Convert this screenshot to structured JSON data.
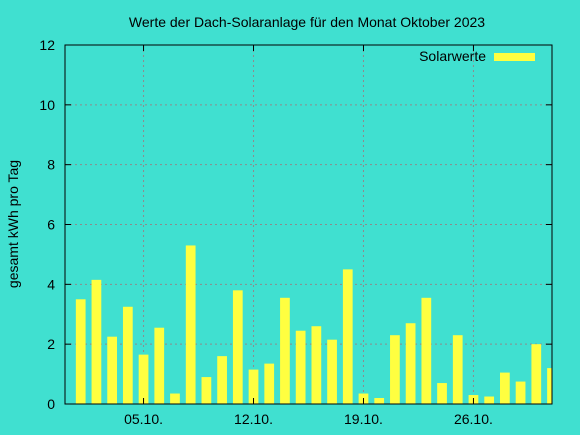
{
  "chart_data": {
    "type": "bar",
    "title": "Werte der Dach-Solaranlage für den Monat Oktober 2023",
    "xlabel": "",
    "ylabel": "gesamt kWh pro Tag",
    "background": "#40e0d0",
    "bar_color": "#ffff40",
    "bar_edge_color": "#cccc00",
    "grid": true,
    "legend_position": "top-right",
    "ylim": [
      0,
      12
    ],
    "yticks": [
      0,
      2,
      4,
      6,
      8,
      10,
      12
    ],
    "xlim": [
      "2023-09-30",
      "2023-10-31"
    ],
    "xticks": [
      {
        "date": "2023-10-05",
        "label": "05.10."
      },
      {
        "date": "2023-10-12",
        "label": "12.10."
      },
      {
        "date": "2023-10-19",
        "label": "19.10."
      },
      {
        "date": "2023-10-26",
        "label": "26.10."
      }
    ],
    "series": [
      {
        "name": "Solarwerte",
        "points": [
          {
            "date": "2023-10-01",
            "value": 3.5
          },
          {
            "date": "2023-10-02",
            "value": 4.15
          },
          {
            "date": "2023-10-03",
            "value": 2.25
          },
          {
            "date": "2023-10-04",
            "value": 3.25
          },
          {
            "date": "2023-10-05",
            "value": 1.65
          },
          {
            "date": "2023-10-06",
            "value": 2.55
          },
          {
            "date": "2023-10-07",
            "value": 0.35
          },
          {
            "date": "2023-10-08",
            "value": 5.3
          },
          {
            "date": "2023-10-09",
            "value": 0.9
          },
          {
            "date": "2023-10-10",
            "value": 1.6
          },
          {
            "date": "2023-10-11",
            "value": 3.8
          },
          {
            "date": "2023-10-12",
            "value": 1.15
          },
          {
            "date": "2023-10-13",
            "value": 1.35
          },
          {
            "date": "2023-10-14",
            "value": 3.55
          },
          {
            "date": "2023-10-15",
            "value": 2.45
          },
          {
            "date": "2023-10-16",
            "value": 2.6
          },
          {
            "date": "2023-10-17",
            "value": 2.15
          },
          {
            "date": "2023-10-18",
            "value": 4.5
          },
          {
            "date": "2023-10-19",
            "value": 0.35
          },
          {
            "date": "2023-10-20",
            "value": 0.2
          },
          {
            "date": "2023-10-21",
            "value": 2.3
          },
          {
            "date": "2023-10-22",
            "value": 2.7
          },
          {
            "date": "2023-10-23",
            "value": 3.55
          },
          {
            "date": "2023-10-24",
            "value": 0.7
          },
          {
            "date": "2023-10-25",
            "value": 2.3
          },
          {
            "date": "2023-10-26",
            "value": 0.3
          },
          {
            "date": "2023-10-27",
            "value": 0.25
          },
          {
            "date": "2023-10-28",
            "value": 1.05
          },
          {
            "date": "2023-10-29",
            "value": 0.75
          },
          {
            "date": "2023-10-30",
            "value": 2.0
          },
          {
            "date": "2023-10-31",
            "value": 1.2
          }
        ]
      }
    ]
  }
}
